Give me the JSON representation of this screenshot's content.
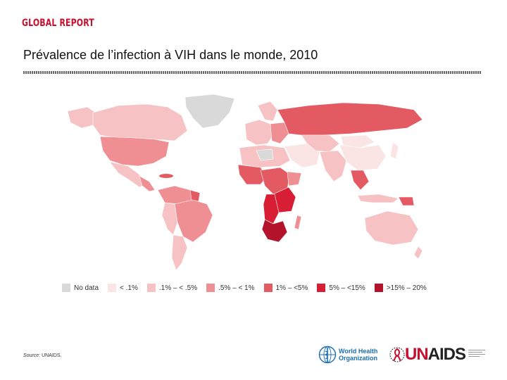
{
  "header": {
    "brand": "GLOBAL REPORT",
    "title": "Prévalence de l’infection à VIH dans le monde, 2010"
  },
  "legend": [
    {
      "label": "No data",
      "color": "#d9d9d9"
    },
    {
      "label": "< .1%",
      "color": "#fbe4e4"
    },
    {
      "label": ".1% – < .5%",
      "color": "#f6c2c4"
    },
    {
      "label": ".5% – < 1%",
      "color": "#ef8e93"
    },
    {
      "label": "1% – <5%",
      "color": "#e45a62"
    },
    {
      "label": "5% – <15%",
      "color": "#d81e35"
    },
    {
      "label": ">15% – 20%",
      "color": "#b3132b"
    }
  ],
  "footer": {
    "source_label": "Source:",
    "source_value": "UNAIDS."
  },
  "logos": {
    "who_line1": "World Health",
    "who_line2": "Organization",
    "unaids_un": "UN",
    "unaids_rest": "AIDS"
  },
  "colors": {
    "brand": "#c8102e",
    "who_blue": "#1a6fb5"
  }
}
